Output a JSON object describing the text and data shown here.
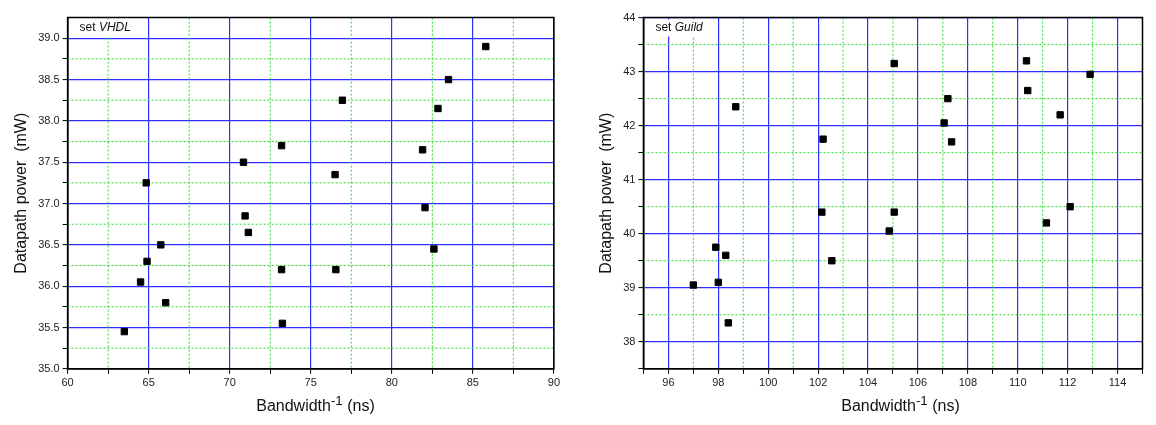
{
  "chart_data": [
    {
      "type": "scatter",
      "xlabel": "Bandwidth$^{-1}$  (ns)",
      "ylabel": "Datapath power  (mW)",
      "annotations": [
        "set VHDL"
      ],
      "marker": "square",
      "grid": true,
      "legend": false,
      "xlim": [
        60,
        90
      ],
      "ylim": [
        35,
        39.25
      ],
      "xticks": [
        60,
        {
          "value": 62.5,
          "label": null
        },
        65,
        {
          "value": 67.5,
          "label": null
        },
        70,
        {
          "value": 72.5,
          "label": null
        },
        75,
        {
          "value": 77.5,
          "label": null
        },
        80,
        {
          "value": 82.5,
          "label": null
        },
        85,
        {
          "value": 87.5,
          "label": null
        },
        90
      ],
      "yticks": [
        {
          "value": 35,
          "label": "35.0"
        },
        {
          "value": 35.25,
          "label": null
        },
        {
          "value": 35.5,
          "label": "35.5"
        },
        {
          "value": 35.75,
          "label": null
        },
        {
          "value": 36,
          "label": "36.0"
        },
        {
          "value": 36.25,
          "label": null
        },
        {
          "value": 36.5,
          "label": "36.5"
        },
        {
          "value": 36.75,
          "label": null
        },
        {
          "value": 37,
          "label": "37.0"
        },
        {
          "value": 37.25,
          "label": null
        },
        {
          "value": 37.5,
          "label": "37.5"
        },
        {
          "value": 37.75,
          "label": null
        },
        {
          "value": 38,
          "label": "38.0"
        },
        {
          "value": 38.25,
          "label": null
        },
        {
          "value": 38.5,
          "label": "38.5"
        },
        {
          "value": 38.75,
          "label": null
        },
        {
          "value": 39,
          "label": "39.0"
        }
      ],
      "series": [
        {
          "color": "#000000",
          "x": [
            63.5,
            64.5,
            64.9,
            64.85,
            65.75,
            66.05,
            70.85,
            70.95,
            71.15,
            73.2,
            73.2,
            73.25,
            76.5,
            76.95,
            76.55,
            81.9,
            82.05,
            82.6,
            82.85,
            83.5,
            85.8
          ],
          "values": [
            35.45,
            36.05,
            36.3,
            37.25,
            36.5,
            35.8,
            37.5,
            36.85,
            36.65,
            37.7,
            36.2,
            35.55,
            37.35,
            38.25,
            36.2,
            37.65,
            36.95,
            36.45,
            38.15,
            38.5,
            38.9
          ]
        }
      ]
    },
    {
      "type": "scatter",
      "xlabel": "Bandwidth$^{-1}$  (ns)",
      "ylabel": "Datapath power  (mW)",
      "annotations": [
        "set Guild"
      ],
      "marker": "square",
      "grid": true,
      "legend": false,
      "xlim": [
        95,
        115
      ],
      "ylim": [
        37.5,
        44
      ],
      "xticks": [
        {
          "value": 95,
          "label": null
        },
        96,
        {
          "value": 97,
          "label": null
        },
        98,
        {
          "value": 99,
          "label": null
        },
        100,
        {
          "value": 101,
          "label": null
        },
        102,
        {
          "value": 103,
          "label": null
        },
        104,
        {
          "value": 105,
          "label": null
        },
        106,
        {
          "value": 107,
          "label": null
        },
        108,
        {
          "value": 109,
          "label": null
        },
        110,
        {
          "value": 111,
          "label": null
        },
        112,
        {
          "value": 113,
          "label": null
        },
        114,
        {
          "value": 115,
          "label": null
        }
      ],
      "yticks": [
        {
          "value": 37.5,
          "label": null
        },
        38,
        {
          "value": 38.5,
          "label": null
        },
        39,
        {
          "value": 39.5,
          "label": null
        },
        40,
        {
          "value": 40.5,
          "label": null
        },
        41,
        {
          "value": 41.5,
          "label": null
        },
        42,
        {
          "value": 42.5,
          "label": null
        },
        43,
        {
          "value": 43.5,
          "label": null
        },
        44
      ],
      "series": [
        {
          "color": "#000000",
          "x": [
            97.0,
            97.9,
            98.0,
            98.3,
            98.4,
            98.7,
            102.2,
            102.15,
            102.55,
            104.85,
            105.05,
            105.05,
            107.05,
            107.2,
            107.35,
            110.35,
            110.4,
            111.15,
            111.7,
            112.1,
            112.9
          ],
          "values": [
            39.05,
            39.75,
            39.1,
            39.6,
            38.35,
            42.35,
            41.75,
            40.4,
            39.5,
            40.05,
            40.4,
            43.15,
            42.05,
            42.5,
            41.7,
            43.2,
            42.65,
            40.2,
            42.2,
            40.5,
            42.95
          ]
        }
      ]
    }
  ]
}
